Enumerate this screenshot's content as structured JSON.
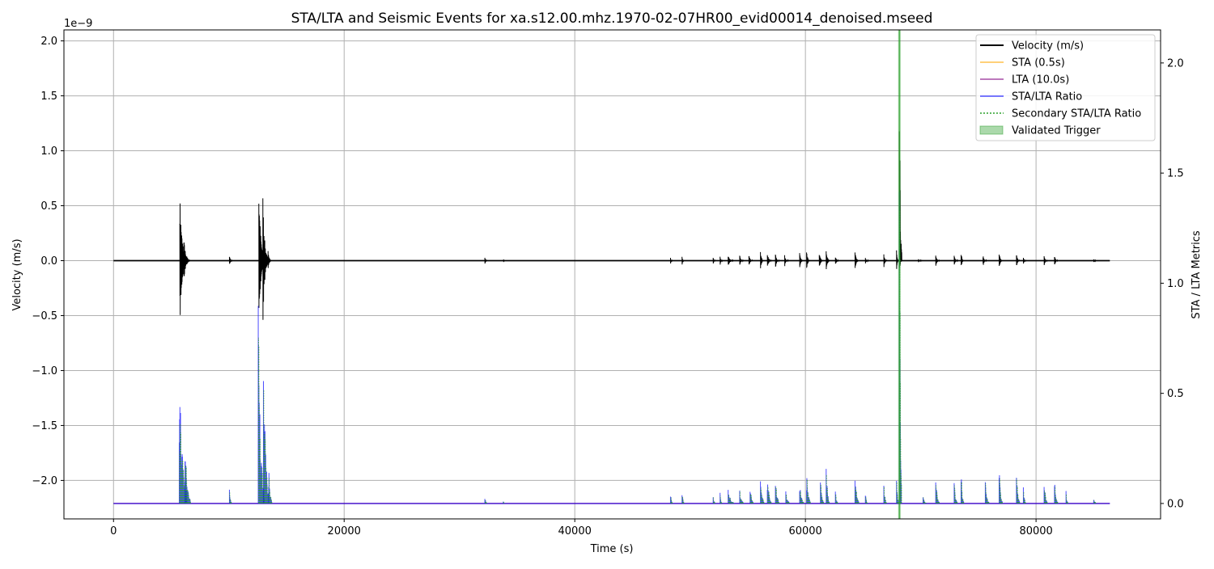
{
  "chart_data": {
    "type": "line",
    "title": "STA/LTA and Seismic Events for xa.s12.00.mhz.1970-02-07HR00_evid00014_denoised.mseed",
    "xlabel": "Time (s)",
    "ylabel_left": "Velocity (m/s)",
    "ylabel_right": "STA / LTA Metrics",
    "left_axis_offset_label": "1e−9",
    "xlim": [
      -4300,
      90800
    ],
    "ylim_left": [
      -2.35e-09,
      2.1e-09
    ],
    "ylim_right": [
      -0.07,
      2.15
    ],
    "x_ticks": [
      0,
      20000,
      40000,
      60000,
      80000
    ],
    "x_tick_labels": [
      "0",
      "20000",
      "40000",
      "60000",
      "80000"
    ],
    "left_ticks": [
      2.0,
      1.5,
      1.0,
      0.5,
      0.0,
      -0.5,
      -1.0,
      -1.5,
      -2.0
    ],
    "left_tick_labels": [
      "2.0",
      "1.5",
      "1.0",
      "0.5",
      "0.0",
      "−0.5",
      "−1.0",
      "−1.5",
      "−2.0"
    ],
    "right_ticks": [
      2.0,
      1.5,
      1.0,
      0.5,
      0.0
    ],
    "right_tick_labels": [
      "2.0",
      "1.5",
      "1.0",
      "0.5",
      "0.0"
    ],
    "grid": true,
    "legend_position": "top-right",
    "colors": {
      "velocity": "#000000",
      "sta": "#ffa500",
      "lta": "#800080",
      "ratio": "#0000ff",
      "secondary_ratio": "#2ca02c",
      "trigger": "#2ca02c",
      "grid": "#b0b0b0"
    },
    "legend": [
      {
        "label": "Velocity (m/s)",
        "style": "line",
        "color": "#000000"
      },
      {
        "label": "STA (0.5s)",
        "style": "line",
        "color": "#ffa500"
      },
      {
        "label": "LTA (10.0s)",
        "style": "line",
        "color": "#800080"
      },
      {
        "label": "STA/LTA Ratio",
        "style": "line",
        "color": "#0000ff"
      },
      {
        "label": "Secondary STA/LTA Ratio",
        "style": "dotted",
        "color": "#2ca02c"
      },
      {
        "label": "Validated Trigger",
        "style": "patch",
        "color": "#2ca02c"
      }
    ],
    "time_range_s": [
      0,
      86400
    ],
    "baseline_ratio": 0.0,
    "validated_trigger_s": 68150,
    "velocity_bursts": [
      {
        "t": 5750,
        "amp_pos": 6.1e-10,
        "amp_neg": 5.8e-10,
        "dur": 600
      },
      {
        "t": 6100,
        "amp_pos": 2e-10,
        "amp_neg": 1.7e-10,
        "dur": 500
      },
      {
        "t": 10050,
        "amp_pos": 6e-11,
        "amp_neg": 5e-11,
        "dur": 200
      },
      {
        "t": 12600,
        "amp_pos": 7e-10,
        "amp_neg": 5.8e-10,
        "dur": 500
      },
      {
        "t": 12950,
        "amp_pos": 6e-10,
        "amp_neg": 5.7e-10,
        "dur": 450
      },
      {
        "t": 13400,
        "amp_pos": 1.3e-10,
        "amp_neg": 1e-10,
        "dur": 250
      },
      {
        "t": 32200,
        "amp_pos": 4e-11,
        "amp_neg": 4e-11,
        "dur": 150
      },
      {
        "t": 33800,
        "amp_pos": 1e-11,
        "amp_neg": 1e-11,
        "dur": 120
      },
      {
        "t": 48300,
        "amp_pos": 3e-11,
        "amp_neg": 3e-11,
        "dur": 150
      },
      {
        "t": 49300,
        "amp_pos": 4e-11,
        "amp_neg": 4e-11,
        "dur": 150
      },
      {
        "t": 52000,
        "amp_pos": 3e-11,
        "amp_neg": 3e-11,
        "dur": 150
      },
      {
        "t": 52600,
        "amp_pos": 4e-11,
        "amp_neg": 4e-11,
        "dur": 200
      },
      {
        "t": 53300,
        "amp_pos": 5e-11,
        "amp_neg": 5e-11,
        "dur": 400
      },
      {
        "t": 54300,
        "amp_pos": 5e-11,
        "amp_neg": 4e-11,
        "dur": 300
      },
      {
        "t": 55100,
        "amp_pos": 6e-11,
        "amp_neg": 5e-11,
        "dur": 300
      },
      {
        "t": 56100,
        "amp_pos": 8e-11,
        "amp_neg": 7e-11,
        "dur": 300
      },
      {
        "t": 56700,
        "amp_pos": 8e-11,
        "amp_neg": 7e-11,
        "dur": 300
      },
      {
        "t": 57400,
        "amp_pos": 6e-11,
        "amp_neg": 6e-11,
        "dur": 300
      },
      {
        "t": 58200,
        "amp_pos": 5e-11,
        "amp_neg": 5e-11,
        "dur": 300
      },
      {
        "t": 59500,
        "amp_pos": 7e-11,
        "amp_neg": 6e-11,
        "dur": 300
      },
      {
        "t": 60100,
        "amp_pos": 8e-11,
        "amp_neg": 7e-11,
        "dur": 300
      },
      {
        "t": 61200,
        "amp_pos": 8e-11,
        "amp_neg": 7e-11,
        "dur": 300
      },
      {
        "t": 61800,
        "amp_pos": 1e-10,
        "amp_neg": 9e-11,
        "dur": 300
      },
      {
        "t": 62600,
        "amp_pos": 5e-11,
        "amp_neg": 5e-11,
        "dur": 250
      },
      {
        "t": 64300,
        "amp_pos": 9e-11,
        "amp_neg": 8e-11,
        "dur": 300
      },
      {
        "t": 65200,
        "amp_pos": 3e-11,
        "amp_neg": 3e-11,
        "dur": 250
      },
      {
        "t": 66800,
        "amp_pos": 6e-11,
        "amp_neg": 6e-11,
        "dur": 250
      },
      {
        "t": 67900,
        "amp_pos": 1e-10,
        "amp_neg": 8e-11,
        "dur": 150
      },
      {
        "t": 68150,
        "amp_pos": 1.9e-09,
        "amp_neg": 1e-10,
        "dur": 200
      },
      {
        "t": 69800,
        "amp_pos": 2e-11,
        "amp_neg": 2e-11,
        "dur": 300
      },
      {
        "t": 71300,
        "amp_pos": 5e-11,
        "amp_neg": 5e-11,
        "dur": 300
      },
      {
        "t": 72900,
        "amp_pos": 5e-11,
        "amp_neg": 4e-11,
        "dur": 300
      },
      {
        "t": 73500,
        "amp_pos": 9e-11,
        "amp_neg": 7e-11,
        "dur": 200
      },
      {
        "t": 75400,
        "amp_pos": 5e-11,
        "amp_neg": 5e-11,
        "dur": 300
      },
      {
        "t": 76800,
        "amp_pos": 8e-11,
        "amp_neg": 7e-11,
        "dur": 250
      },
      {
        "t": 78300,
        "amp_pos": 7e-11,
        "amp_neg": 6e-11,
        "dur": 250
      },
      {
        "t": 78900,
        "amp_pos": 4e-11,
        "amp_neg": 4e-11,
        "dur": 200
      },
      {
        "t": 80700,
        "amp_pos": 5e-11,
        "amp_neg": 5e-11,
        "dur": 250
      },
      {
        "t": 81600,
        "amp_pos": 5e-11,
        "amp_neg": 5e-11,
        "dur": 250
      },
      {
        "t": 85000,
        "amp_pos": 2e-11,
        "amp_neg": 2e-11,
        "dur": 200
      }
    ],
    "ratio_spikes": [
      {
        "t": 5700,
        "peak": 0.72,
        "dur": 650
      },
      {
        "t": 6200,
        "peak": 0.28,
        "dur": 450
      },
      {
        "t": 10050,
        "peak": 0.1,
        "dur": 150
      },
      {
        "t": 12550,
        "peak": 0.93,
        "dur": 500
      },
      {
        "t": 13000,
        "peak": 0.74,
        "dur": 450
      },
      {
        "t": 13450,
        "peak": 0.21,
        "dur": 250
      },
      {
        "t": 32200,
        "peak": 0.06,
        "dur": 150
      },
      {
        "t": 33800,
        "peak": 0.01,
        "dur": 100
      },
      {
        "t": 48300,
        "peak": 0.05,
        "dur": 150
      },
      {
        "t": 49300,
        "peak": 0.08,
        "dur": 150
      },
      {
        "t": 52000,
        "peak": 0.04,
        "dur": 150
      },
      {
        "t": 52600,
        "peak": 0.06,
        "dur": 150
      },
      {
        "t": 53300,
        "peak": 0.07,
        "dur": 450
      },
      {
        "t": 54300,
        "peak": 0.08,
        "dur": 300
      },
      {
        "t": 55200,
        "peak": 0.1,
        "dur": 250
      },
      {
        "t": 56100,
        "peak": 0.14,
        "dur": 300
      },
      {
        "t": 56700,
        "peak": 0.15,
        "dur": 300
      },
      {
        "t": 57400,
        "peak": 0.14,
        "dur": 300
      },
      {
        "t": 58300,
        "peak": 0.07,
        "dur": 300
      },
      {
        "t": 59500,
        "peak": 0.13,
        "dur": 300
      },
      {
        "t": 60100,
        "peak": 0.16,
        "dur": 300
      },
      {
        "t": 61300,
        "peak": 0.14,
        "dur": 250
      },
      {
        "t": 61800,
        "peak": 0.19,
        "dur": 250
      },
      {
        "t": 62600,
        "peak": 0.06,
        "dur": 200
      },
      {
        "t": 64300,
        "peak": 0.15,
        "dur": 300
      },
      {
        "t": 65200,
        "peak": 0.05,
        "dur": 200
      },
      {
        "t": 66800,
        "peak": 0.1,
        "dur": 200
      },
      {
        "t": 67900,
        "peak": 0.2,
        "dur": 150
      },
      {
        "t": 68150,
        "peak": 2.0,
        "dur": 160
      },
      {
        "t": 70200,
        "peak": 0.04,
        "dur": 250
      },
      {
        "t": 71300,
        "peak": 0.13,
        "dur": 300
      },
      {
        "t": 72900,
        "peak": 0.1,
        "dur": 250
      },
      {
        "t": 73500,
        "peak": 0.16,
        "dur": 200
      },
      {
        "t": 75600,
        "peak": 0.12,
        "dur": 300
      },
      {
        "t": 76800,
        "peak": 0.18,
        "dur": 250
      },
      {
        "t": 78300,
        "peak": 0.16,
        "dur": 250
      },
      {
        "t": 78900,
        "peak": 0.08,
        "dur": 200
      },
      {
        "t": 80700,
        "peak": 0.12,
        "dur": 250
      },
      {
        "t": 81600,
        "peak": 0.13,
        "dur": 250
      },
      {
        "t": 82600,
        "peak": 0.06,
        "dur": 150
      },
      {
        "t": 85000,
        "peak": 0.03,
        "dur": 200
      }
    ]
  }
}
